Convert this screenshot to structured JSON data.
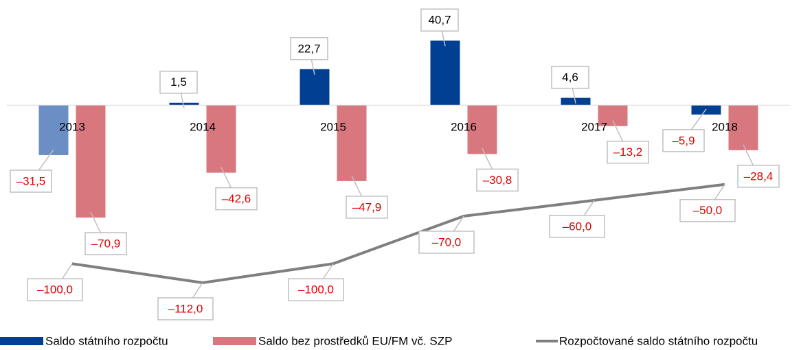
{
  "chart_data": {
    "type": "bar",
    "categories": [
      "2013",
      "2014",
      "2015",
      "2016",
      "2017",
      "2018"
    ],
    "series": [
      {
        "name": "Saldo státního rozpočtu",
        "type": "bar",
        "color": "#003f91",
        "colors": [
          "#6b8fc5",
          "#003f91",
          "#003f91",
          "#003f91",
          "#003f91",
          "#003f91"
        ],
        "values": [
          -31.5,
          1.5,
          22.7,
          40.7,
          4.6,
          -5.9
        ],
        "value_labels": [
          "–31,5",
          "1,5",
          "22,7",
          "40,7",
          "4,6",
          "–5,9"
        ]
      },
      {
        "name": "Saldo bez prostředků EU/FM vč. SZP",
        "type": "bar",
        "color": "#d9777f",
        "values": [
          -70.9,
          -42.6,
          -47.9,
          -30.8,
          -13.2,
          -28.4
        ],
        "value_labels": [
          "–70,9",
          "–42,6",
          "–47,9",
          "–30,8",
          "–13,2",
          "–28,4"
        ]
      },
      {
        "name": "Rozpočtované saldo státního rozpočtu",
        "type": "line",
        "color": "#7f7f7f",
        "values": [
          -100,
          -112,
          -100,
          -70,
          -60,
          -50
        ],
        "value_labels": [
          "–100,0",
          "–112,0",
          "–100,0",
          "–70,0",
          "–60,0",
          "–50,0"
        ]
      }
    ],
    "ylim": [
      -125,
      62
    ]
  }
}
